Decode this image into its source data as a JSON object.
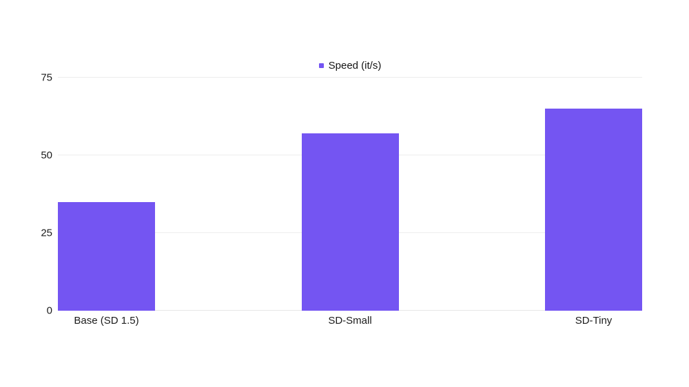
{
  "chart_data": {
    "type": "bar",
    "title": "",
    "xlabel": "",
    "ylabel": "",
    "categories": [
      "Base (SD 1.5)",
      "SD-Small",
      "SD-Tiny"
    ],
    "series": [
      {
        "name": "Speed (it/s)",
        "values": [
          35,
          57,
          65
        ],
        "color": "#7455F2"
      }
    ],
    "ylim": [
      0,
      75
    ],
    "yticks": [
      0,
      25,
      50,
      75
    ],
    "grid": true,
    "legend_position": "top-center"
  },
  "legend": {
    "label": "Speed (it/s)",
    "marker_color": "#7455F2"
  },
  "colors": {
    "background": "#ffffff",
    "bar": "#7455F2",
    "gridline": "#ededed",
    "axis_text": "#1b1b1b"
  }
}
